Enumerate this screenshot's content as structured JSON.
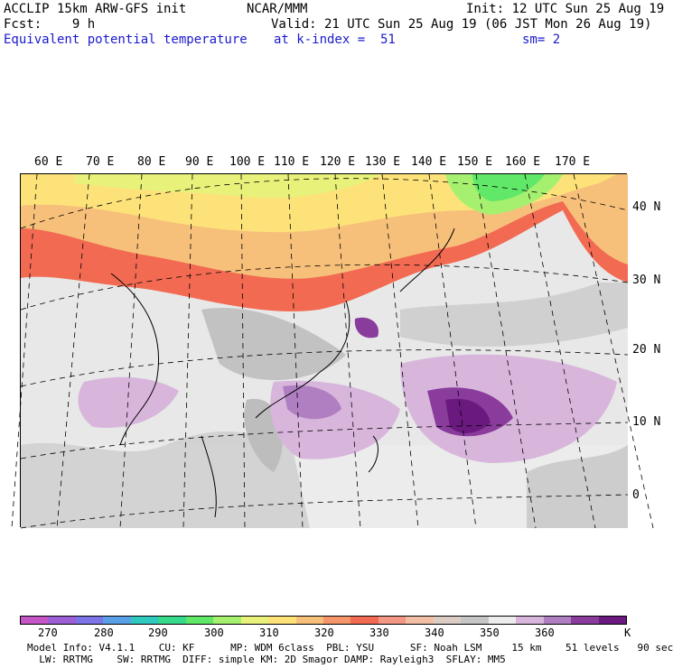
{
  "header": {
    "line1_left": "ACCLIP 15km ARW-GFS init",
    "line1_mid": "NCAR/MMM",
    "line1_right": "Init: 12 UTC Sun 25 Aug 19",
    "line2_left": "Fcst:    9 h",
    "line2_right": "Valid: 21 UTC Sun 25 Aug 19 (06 JST Mon 26 Aug 19)",
    "line3_left": "Equivalent potential temperature",
    "line3_mid": "at k-index =  51",
    "line3_right": "sm= 2"
  },
  "map": {
    "lon_labels": [
      "60 E",
      "70 E",
      "80 E",
      "90 E",
      "100 E",
      "110 E",
      "120 E",
      "130 E",
      "140 E",
      "150 E",
      "160 E",
      "170 E"
    ],
    "lat_labels": [
      "40 N",
      "30 N",
      "20 N",
      "10 N",
      "0"
    ]
  },
  "colorbar": {
    "unit": "K",
    "ticks": [
      "270",
      "280",
      "290",
      "300",
      "310",
      "320",
      "330",
      "340",
      "350",
      "360"
    ],
    "colors": [
      "#c455c4",
      "#9c5fd6",
      "#7b73e6",
      "#5aa0e8",
      "#2fc9c0",
      "#37d98a",
      "#61e868",
      "#a6f070",
      "#e8f27a",
      "#fde27a",
      "#f7c07a",
      "#f4966a",
      "#f26a52",
      "#f39884",
      "#f2bfa6",
      "#dccdc4",
      "#c6c6c6",
      "#ececec",
      "#d8b6dc",
      "#b07fc2",
      "#8a3c9c",
      "#6a1a7e"
    ]
  },
  "footer": {
    "line1": "Model Info: V4.1.1    CU: KF      MP: WDM 6class  PBL: YSU      SF: Noah LSM     15 km    51 levels   90 sec",
    "line2": "  LW: RRTMG    SW: RRTMG  DIFF: simple KM: 2D Smagor DAMP: Rayleigh3  SFLAY: MM5"
  }
}
